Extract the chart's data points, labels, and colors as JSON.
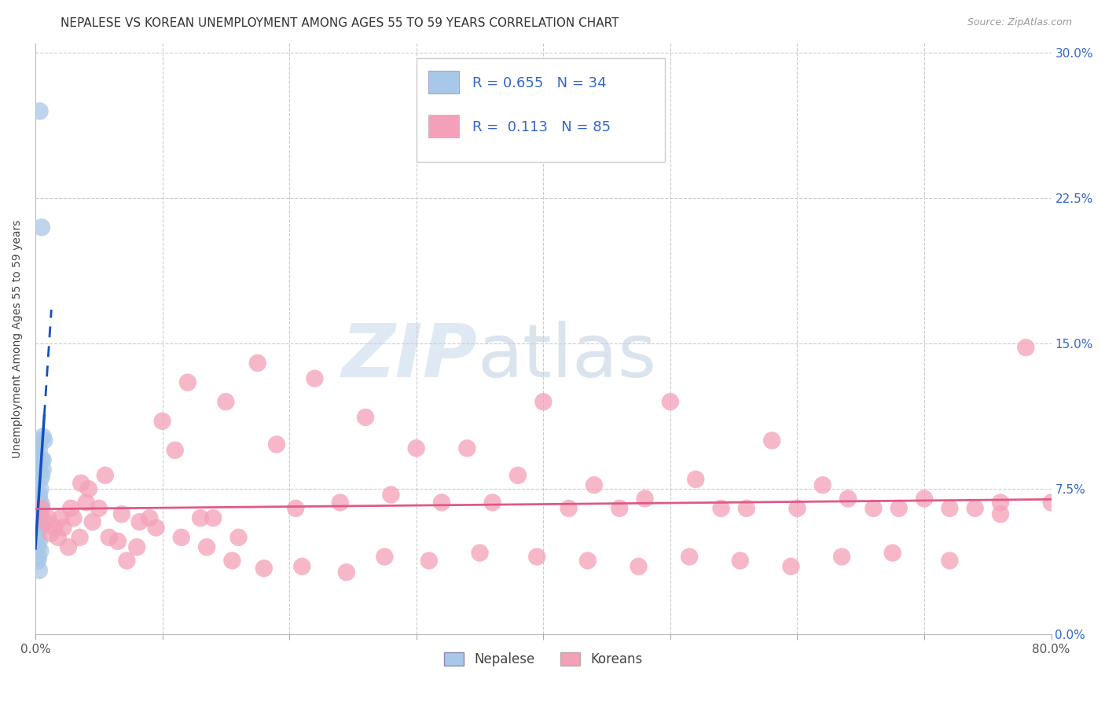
{
  "title": "NEPALESE VS KOREAN UNEMPLOYMENT AMONG AGES 55 TO 59 YEARS CORRELATION CHART",
  "source": "Source: ZipAtlas.com",
  "ylabel": "Unemployment Among Ages 55 to 59 years",
  "xlim": [
    0.0,
    0.8
  ],
  "ylim": [
    0.0,
    0.305
  ],
  "yticks": [
    0.0,
    0.075,
    0.15,
    0.225,
    0.3
  ],
  "ytick_labels": [
    "0.0%",
    "7.5%",
    "15.0%",
    "22.5%",
    "30.0%"
  ],
  "xticks": [
    0.0,
    0.1,
    0.2,
    0.3,
    0.4,
    0.5,
    0.6,
    0.7,
    0.8
  ],
  "nepalese_color": "#A8C8E8",
  "korean_color": "#F4A0B8",
  "nepalese_line_color": "#1050C0",
  "korean_line_color": "#E05888",
  "legend_color": "#3366CC",
  "R_nepalese": 0.655,
  "N_nepalese": 34,
  "R_korean": 0.113,
  "N_korean": 85,
  "nepalese_x": [
    0.0035,
    0.005,
    0.0015,
    0.003,
    0.002,
    0.004,
    0.006,
    0.003,
    0.0025,
    0.004,
    0.003,
    0.0025,
    0.002,
    0.005,
    0.004,
    0.003,
    0.0025,
    0.006,
    0.004,
    0.003,
    0.0025,
    0.002,
    0.005,
    0.004,
    0.003,
    0.0025,
    0.007,
    0.004,
    0.003,
    0.005,
    0.002,
    0.006,
    0.003,
    0.004
  ],
  "nepalese_y": [
    0.27,
    0.21,
    0.092,
    0.095,
    0.093,
    0.1,
    0.102,
    0.085,
    0.072,
    0.065,
    0.06,
    0.055,
    0.05,
    0.09,
    0.08,
    0.072,
    0.065,
    0.09,
    0.075,
    0.07,
    0.062,
    0.045,
    0.082,
    0.055,
    0.048,
    0.04,
    0.1,
    0.06,
    0.055,
    0.067,
    0.038,
    0.085,
    0.033,
    0.043
  ],
  "korean_x": [
    0.005,
    0.01,
    0.015,
    0.018,
    0.022,
    0.026,
    0.03,
    0.035,
    0.04,
    0.045,
    0.05,
    0.058,
    0.065,
    0.072,
    0.08,
    0.09,
    0.1,
    0.11,
    0.12,
    0.13,
    0.14,
    0.15,
    0.16,
    0.175,
    0.19,
    0.205,
    0.22,
    0.24,
    0.26,
    0.28,
    0.3,
    0.32,
    0.34,
    0.36,
    0.38,
    0.4,
    0.42,
    0.44,
    0.46,
    0.48,
    0.5,
    0.52,
    0.54,
    0.56,
    0.58,
    0.6,
    0.62,
    0.64,
    0.66,
    0.68,
    0.7,
    0.72,
    0.74,
    0.76,
    0.78,
    0.008,
    0.012,
    0.02,
    0.028,
    0.036,
    0.042,
    0.055,
    0.068,
    0.082,
    0.095,
    0.115,
    0.135,
    0.155,
    0.18,
    0.21,
    0.245,
    0.275,
    0.31,
    0.35,
    0.395,
    0.435,
    0.475,
    0.515,
    0.555,
    0.595,
    0.635,
    0.675,
    0.72,
    0.76,
    0.8
  ],
  "korean_y": [
    0.065,
    0.06,
    0.055,
    0.05,
    0.055,
    0.045,
    0.06,
    0.05,
    0.068,
    0.058,
    0.065,
    0.05,
    0.048,
    0.038,
    0.045,
    0.06,
    0.11,
    0.095,
    0.13,
    0.06,
    0.06,
    0.12,
    0.05,
    0.14,
    0.098,
    0.065,
    0.132,
    0.068,
    0.112,
    0.072,
    0.096,
    0.068,
    0.096,
    0.068,
    0.082,
    0.12,
    0.065,
    0.077,
    0.065,
    0.07,
    0.12,
    0.08,
    0.065,
    0.065,
    0.1,
    0.065,
    0.077,
    0.07,
    0.065,
    0.065,
    0.07,
    0.065,
    0.065,
    0.068,
    0.148,
    0.058,
    0.052,
    0.06,
    0.065,
    0.078,
    0.075,
    0.082,
    0.062,
    0.058,
    0.055,
    0.05,
    0.045,
    0.038,
    0.034,
    0.035,
    0.032,
    0.04,
    0.038,
    0.042,
    0.04,
    0.038,
    0.035,
    0.04,
    0.038,
    0.035,
    0.04,
    0.042,
    0.038,
    0.062,
    0.068
  ],
  "background_color": "#FFFFFF",
  "grid_color": "#CCCCCC",
  "title_fontsize": 11,
  "axis_label_fontsize": 10,
  "tick_fontsize": 11,
  "legend_fontsize": 13
}
